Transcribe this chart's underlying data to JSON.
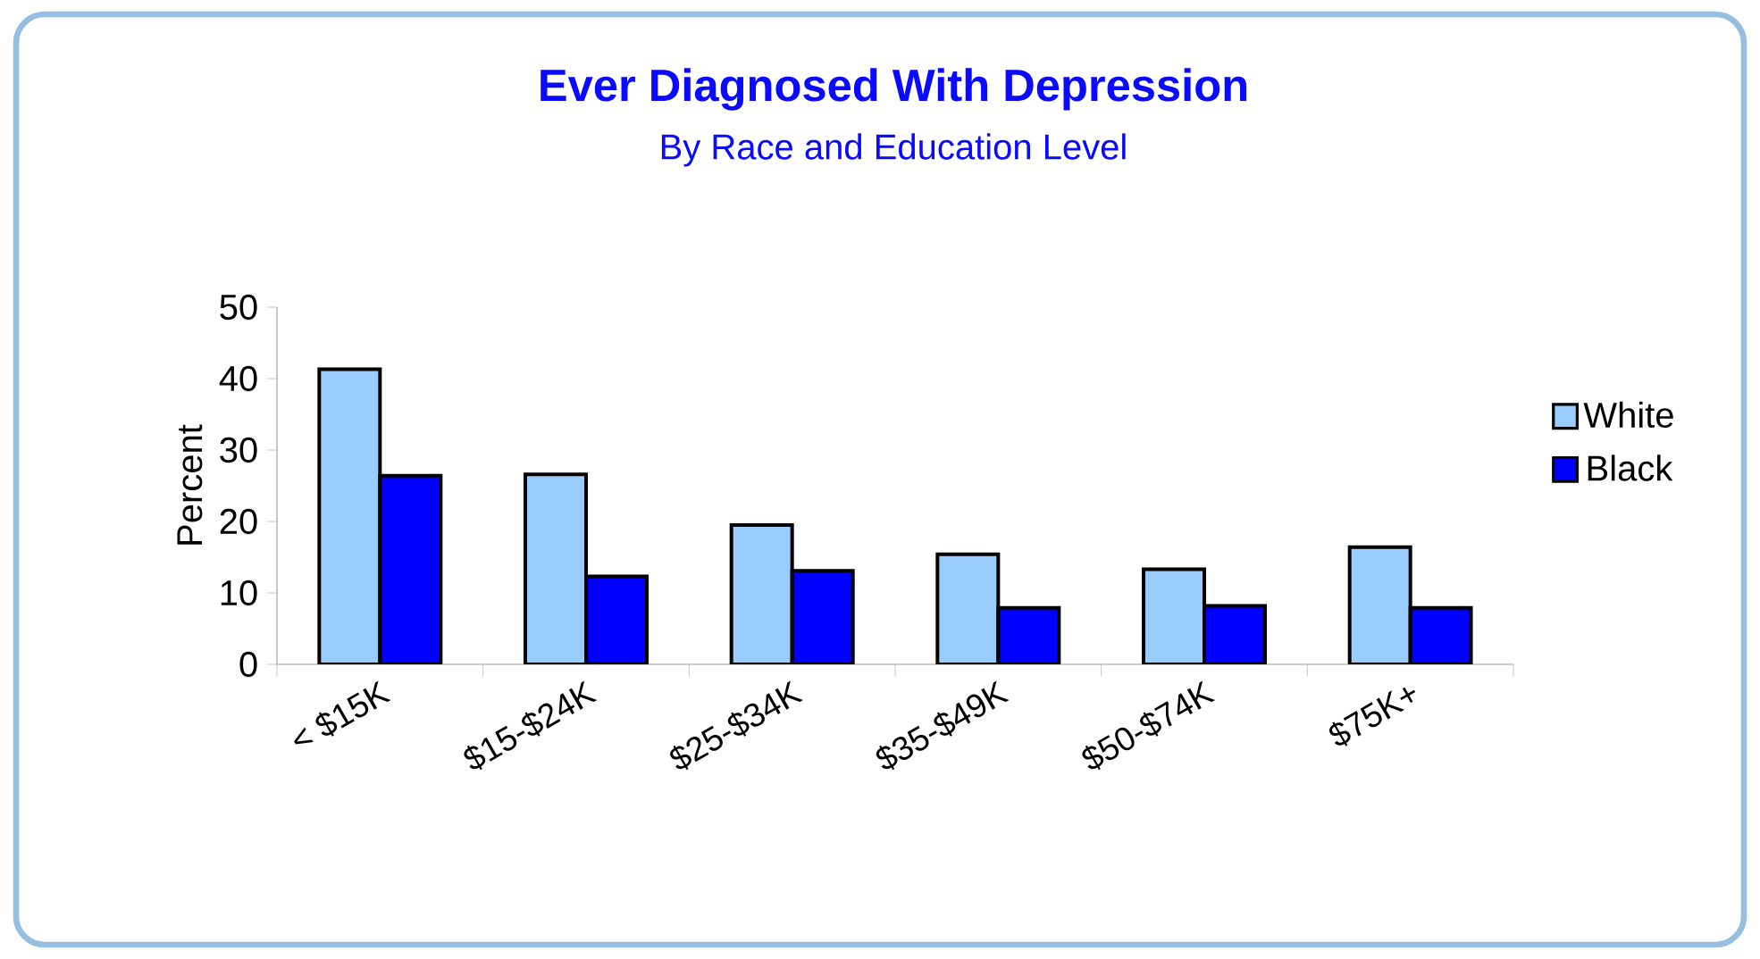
{
  "chart_data": {
    "type": "bar",
    "title": "Ever Diagnosed With Depression",
    "subtitle": "By Race and Education Level",
    "ylabel": "Percent",
    "categories": [
      "< $15K",
      "$15-$24K",
      "$25-$34K",
      "$35-$49K",
      "$50-$74K",
      "$75K+"
    ],
    "series": [
      {
        "name": "White",
        "color": "#99ccff",
        "values": [
          41.3,
          26.6,
          19.5,
          15.4,
          13.3,
          16.4
        ]
      },
      {
        "name": "Black",
        "color": "#0000ff",
        "values": [
          26.4,
          12.3,
          13.1,
          7.9,
          8.2,
          7.9
        ]
      }
    ],
    "ylim": [
      0,
      50
    ],
    "yticks": [
      0,
      10,
      20,
      30,
      40,
      50
    ],
    "grid": false,
    "legend": "right"
  }
}
